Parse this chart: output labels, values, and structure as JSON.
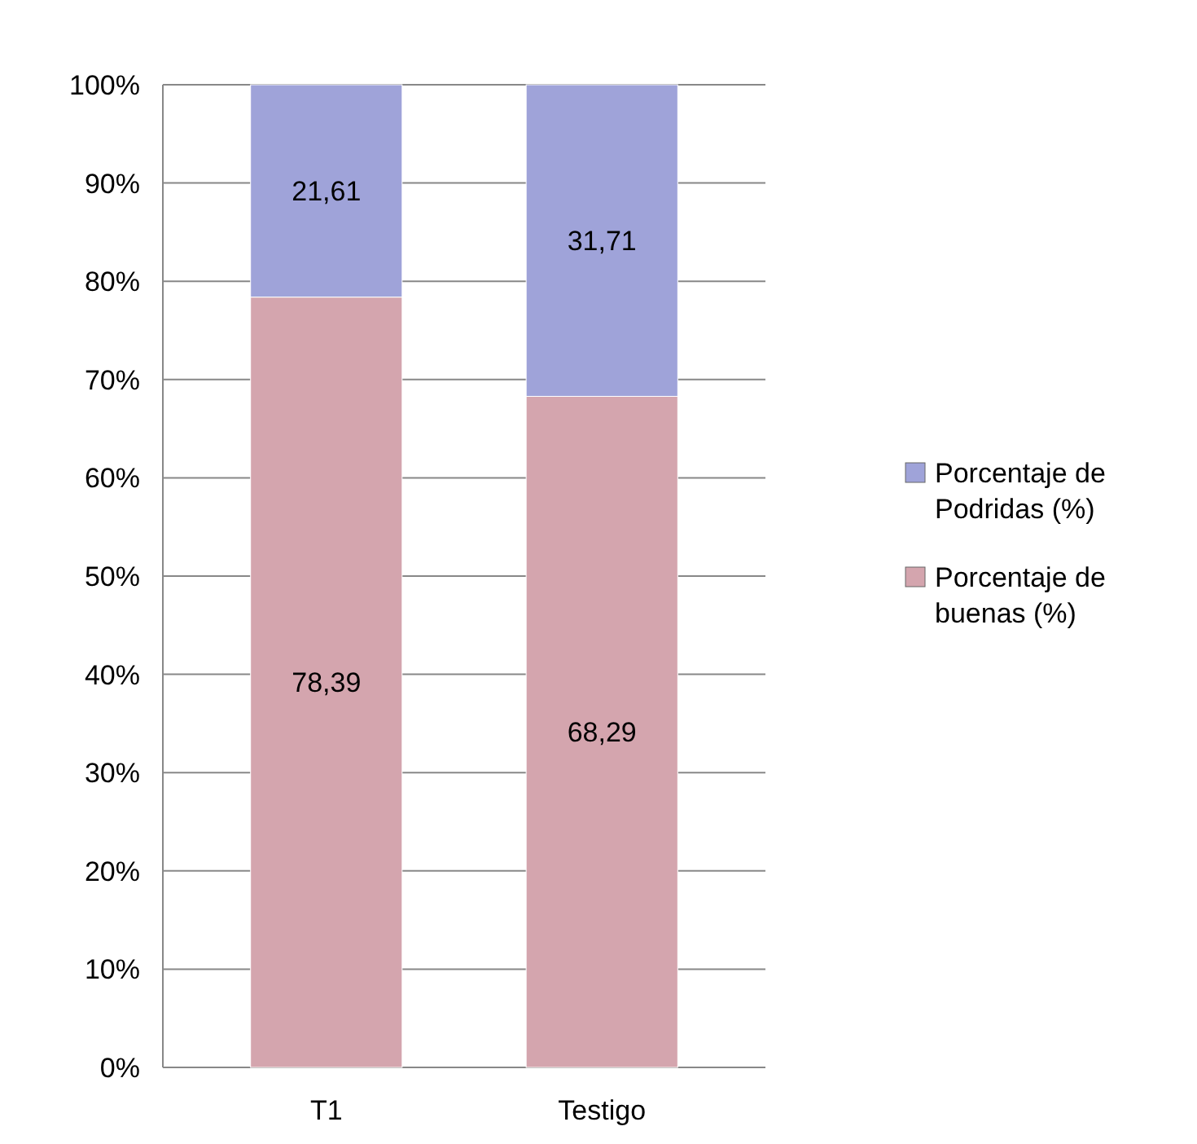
{
  "chart_data": {
    "type": "bar",
    "stacked": true,
    "categories": [
      "T1",
      "Testigo"
    ],
    "series": [
      {
        "name": "Porcentaje de buenas (%)",
        "color": "#d4a5ae",
        "values": [
          78.39,
          68.29
        ],
        "value_labels": [
          "78,39",
          "68,29"
        ]
      },
      {
        "name": "Porcentaje de Podridas (%)",
        "color": "#9fa3d9",
        "values": [
          21.61,
          31.71
        ],
        "value_labels": [
          "21,61",
          "31,71"
        ]
      }
    ],
    "ylim": [
      0,
      100
    ],
    "yticks": [
      {
        "value": 0,
        "label": "0%"
      },
      {
        "value": 10,
        "label": "10%"
      },
      {
        "value": 20,
        "label": "20%"
      },
      {
        "value": 30,
        "label": "30%"
      },
      {
        "value": 40,
        "label": "40%"
      },
      {
        "value": 50,
        "label": "50%"
      },
      {
        "value": 60,
        "label": "60%"
      },
      {
        "value": 70,
        "label": "70%"
      },
      {
        "value": 80,
        "label": "80%"
      },
      {
        "value": 90,
        "label": "90%"
      },
      {
        "value": 100,
        "label": "100%"
      }
    ],
    "grid": "y",
    "legend": "right"
  }
}
